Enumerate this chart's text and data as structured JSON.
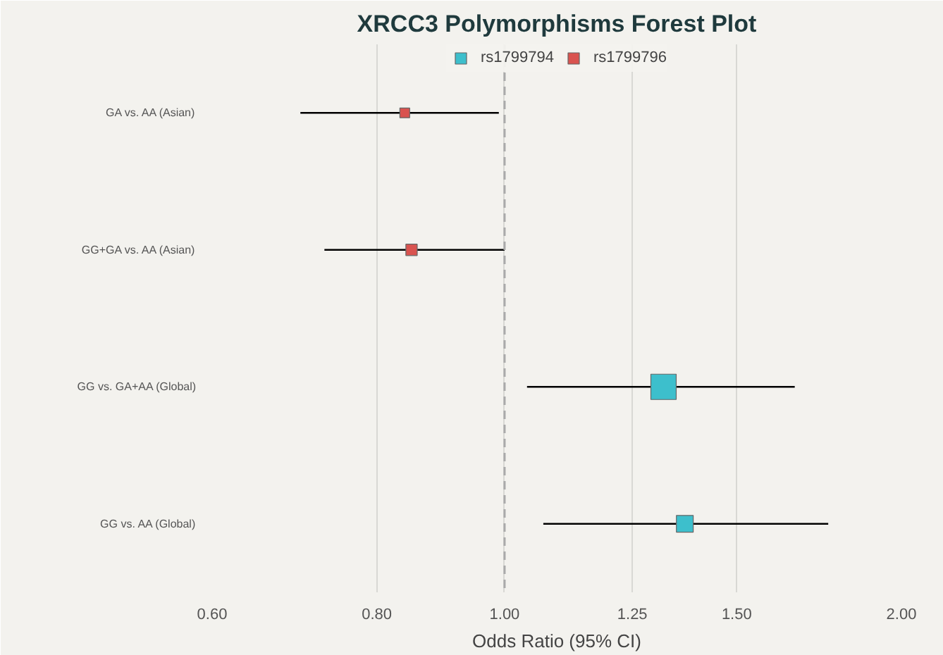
{
  "chart_data": {
    "type": "bubble",
    "title": "XRCC3 Polymorphisms Forest Plot",
    "xlabel": "Odds Ratio (95% CI)",
    "orientation": "horizontal",
    "log": "x",
    "marker": "square",
    "categories": [
      "GA vs. AA (Asian)",
      "GG+GA vs. AA (Asian)",
      "GG vs. GA+AA (Global)",
      "GG vs. AA (Global)"
    ],
    "series": [
      {
        "name": "rs1799794",
        "color": "#3dbfcc",
        "values": [
          null,
          null,
          1.32,
          1.37
        ],
        "errors": [
          null,
          null,
          [
            1.04,
            1.66
          ],
          [
            1.07,
            1.76
          ]
        ],
        "sizes": [
          null,
          null,
          1,
          0.44
        ]
      },
      {
        "name": "rs1799796",
        "color": "#d9534f",
        "values": [
          0.84,
          0.85,
          null,
          null
        ],
        "errors": [
          [
            0.7,
            0.99
          ],
          [
            0.73,
            1.0
          ],
          null,
          null
        ],
        "sizes": [
          0.15,
          0.2,
          null,
          null
        ]
      }
    ],
    "xlim": [
      0.6,
      2.0
    ],
    "xticks": [
      {
        "value": 0.6,
        "label": "0.60"
      },
      {
        "value": 0.8,
        "label": "0.80"
      },
      {
        "value": 1.0,
        "label": "1.00"
      },
      {
        "value": 1.25,
        "label": "1.25"
      },
      {
        "value": 1.5,
        "label": "1.50"
      },
      {
        "value": 2.0,
        "label": "2.00"
      }
    ],
    "ref_lines": [
      {
        "axis": "x",
        "value": 1.0,
        "color": "#aaaaaa",
        "line_style": "dashed"
      }
    ],
    "grid": "x",
    "legend": "top"
  }
}
